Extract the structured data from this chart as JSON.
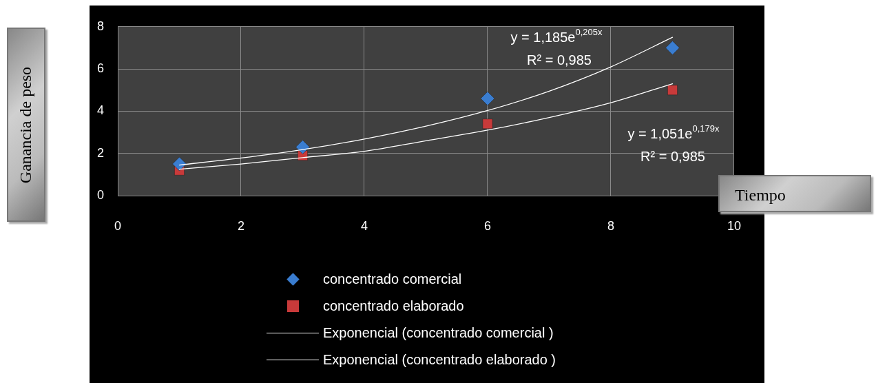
{
  "chart_data": {
    "type": "scatter",
    "xlabel": "Tiempo",
    "ylabel": "Ganancia de peso",
    "xlim": [
      0,
      10
    ],
    "xticks": [
      0,
      2,
      4,
      6,
      8,
      10
    ],
    "ylim": [
      0,
      8
    ],
    "yticks": [
      0,
      2,
      4,
      6,
      8
    ],
    "grid": true,
    "legend": "bottom",
    "series": [
      {
        "name": "concentrado comercial",
        "marker": "diamond",
        "color": "#3a7dd0",
        "x": [
          1,
          3,
          6,
          9
        ],
        "values": [
          1.5,
          2.3,
          4.6,
          7.0
        ]
      },
      {
        "name": "concentrado elaborado",
        "marker": "square",
        "color": "#c83a3a",
        "x": [
          1,
          3,
          6,
          9
        ],
        "values": [
          1.2,
          1.9,
          3.4,
          5.0
        ]
      },
      {
        "name": "Exponencial (concentrado comercial )",
        "type": "line",
        "marker": "none",
        "color": "#ffffff",
        "x": [
          1,
          2,
          3,
          4,
          5,
          6,
          7,
          8,
          9
        ],
        "values": [
          1.45,
          1.78,
          2.18,
          2.68,
          3.29,
          4.03,
          4.95,
          6.1,
          7.5
        ]
      },
      {
        "name": "Exponencial (concentrado elaborado )",
        "type": "line",
        "marker": "none",
        "color": "#ffffff",
        "x": [
          1,
          2,
          3,
          4,
          5,
          6,
          7,
          8,
          9
        ],
        "values": [
          1.25,
          1.5,
          1.8,
          2.1,
          2.6,
          3.1,
          3.7,
          4.4,
          5.3
        ]
      }
    ],
    "annotations": [
      "y = 1,185e$^{0,205x}$",
      "R² = 0,985",
      "y = 1,051e$^{0,179x}$",
      "R² = 0,985"
    ]
  }
}
